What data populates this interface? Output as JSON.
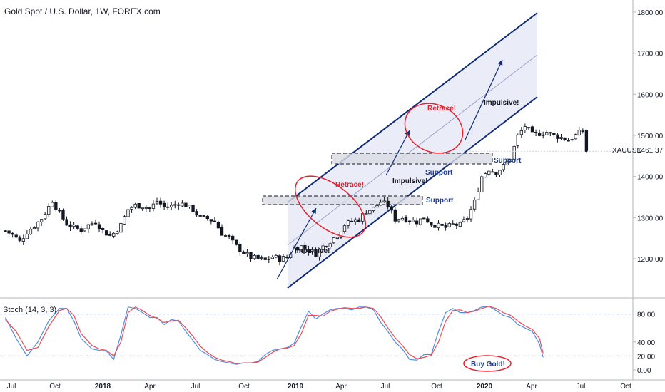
{
  "header": {
    "title": "Gold Spot / U.S. Dollar, 1W, FOREX.com"
  },
  "symbol": {
    "name": "XAUUSD",
    "price_label": "1461.37"
  },
  "stoch": {
    "label": "Stoch (14, 3, 3)"
  },
  "colors": {
    "up": "#ffffff",
    "down": "#131722",
    "candle_outline": "#131722",
    "channel": "#0e2a78",
    "channel_fill": "#eaedf8",
    "circle": "#e81f2b",
    "support_label": "#1f3c8f",
    "stoch_k": "#4f8fe0",
    "stoch_d": "#ee4b55",
    "level": "#8791b8"
  },
  "annotations": {
    "retrace_1": "Retrace!",
    "retrace_2": "Retrace!",
    "impulsive_1": "Impulsive!",
    "impulsive_2": "Impulsive!",
    "impulsive_3": "Impulsive!",
    "support_1": "Support",
    "support_2": "Support",
    "support_3": "Support",
    "buy": "Buy Gold!"
  },
  "chart_data": [
    {
      "type": "candlestick",
      "title": "Gold Spot / U.S. Dollar, 1W, FOREX.com",
      "ylim": [
        1110,
        1820
      ],
      "y_ticks": [
        "1200.00",
        "1300.00",
        "1400.00",
        "1500.00",
        "1600.00",
        "1700.00",
        "1800.00"
      ],
      "x_ticks": [
        "Jul",
        "Oct",
        "2018",
        "Apr",
        "Jul",
        "Oct",
        "2019",
        "Apr",
        "Jul",
        "Oct",
        "2020",
        "Apr",
        "Jul",
        "Oct"
      ],
      "last_price": 1461.37,
      "close_path": [
        [
          0,
          1268
        ],
        [
          2,
          1258
        ],
        [
          4,
          1242
        ],
        [
          6,
          1265
        ],
        [
          8,
          1280
        ],
        [
          10,
          1298
        ],
        [
          12,
          1326
        ],
        [
          13,
          1342
        ],
        [
          15,
          1310
        ],
        [
          17,
          1285
        ],
        [
          19,
          1276
        ],
        [
          21,
          1270
        ],
        [
          23,
          1282
        ],
        [
          25,
          1290
        ],
        [
          27,
          1268
        ],
        [
          29,
          1256
        ],
        [
          30,
          1262
        ],
        [
          32,
          1282
        ],
        [
          34,
          1320
        ],
        [
          36,
          1330
        ],
        [
          38,
          1328
        ],
        [
          40,
          1322
        ],
        [
          42,
          1340
        ],
        [
          44,
          1326
        ],
        [
          46,
          1328
        ],
        [
          48,
          1336
        ],
        [
          50,
          1330
        ],
        [
          52,
          1318
        ],
        [
          54,
          1300
        ],
        [
          56,
          1298
        ],
        [
          58,
          1290
        ],
        [
          60,
          1262
        ],
        [
          62,
          1250
        ],
        [
          64,
          1230
        ],
        [
          66,
          1215
        ],
        [
          68,
          1203
        ],
        [
          70,
          1200
        ],
        [
          72,
          1196
        ],
        [
          74,
          1205
        ],
        [
          76,
          1200
        ],
        [
          78,
          1203
        ],
        [
          80,
          1226
        ],
        [
          82,
          1230
        ],
        [
          84,
          1222
        ],
        [
          86,
          1212
        ],
        [
          88,
          1230
        ],
        [
          90,
          1243
        ],
        [
          92,
          1258
        ],
        [
          94,
          1283
        ],
        [
          96,
          1291
        ],
        [
          98,
          1296
        ],
        [
          100,
          1316
        ],
        [
          102,
          1322
        ],
        [
          104,
          1338
        ],
        [
          106,
          1330
        ],
        [
          108,
          1296
        ],
        [
          110,
          1300
        ],
        [
          112,
          1294
        ],
        [
          114,
          1290
        ],
        [
          116,
          1300
        ],
        [
          118,
          1285
        ],
        [
          120,
          1280
        ],
        [
          122,
          1276
        ],
        [
          124,
          1283
        ],
        [
          126,
          1282
        ],
        [
          128,
          1300
        ],
        [
          130,
          1338
        ],
        [
          132,
          1400
        ],
        [
          134,
          1418
        ],
        [
          136,
          1410
        ],
        [
          138,
          1425
        ],
        [
          140,
          1445
        ],
        [
          142,
          1498
        ],
        [
          144,
          1523
        ],
        [
          146,
          1502
        ],
        [
          148,
          1505
        ],
        [
          150,
          1508
        ],
        [
          152,
          1500
        ],
        [
          154,
          1495
        ],
        [
          156,
          1488
        ],
        [
          158,
          1500
        ],
        [
          160,
          1512
        ],
        [
          161,
          1462
        ]
      ]
    },
    {
      "type": "line",
      "title": "Stoch (14, 3, 3)",
      "ylim": [
        0,
        100
      ],
      "y_ticks": [
        "0.00",
        "20.00",
        "40.00",
        "80.00"
      ],
      "levels": [
        80,
        20
      ],
      "series": [
        {
          "values": [
            [
              0,
              75
            ],
            [
              3,
              45
            ],
            [
              6,
              20
            ],
            [
              9,
              40
            ],
            [
              12,
              70
            ],
            [
              15,
              88
            ],
            [
              17,
              88
            ],
            [
              19,
              70
            ],
            [
              21,
              45
            ],
            [
              24,
              30
            ],
            [
              26,
              28
            ],
            [
              28,
              27
            ],
            [
              30,
              15
            ],
            [
              32,
              50
            ],
            [
              34,
              90
            ],
            [
              36,
              88
            ],
            [
              38,
              82
            ],
            [
              40,
              75
            ],
            [
              42,
              75
            ],
            [
              44,
              65
            ],
            [
              46,
              72
            ],
            [
              48,
              70
            ],
            [
              50,
              55
            ],
            [
              52,
              42
            ],
            [
              54,
              28
            ],
            [
              56,
              22
            ],
            [
              58,
              15
            ],
            [
              60,
              12
            ],
            [
              62,
              10
            ],
            [
              64,
              8
            ],
            [
              66,
              10
            ],
            [
              68,
              10
            ],
            [
              70,
              12
            ],
            [
              72,
              22
            ],
            [
              74,
              28
            ],
            [
              76,
              30
            ],
            [
              78,
              32
            ],
            [
              80,
              38
            ],
            [
              82,
              62
            ],
            [
              84,
              84
            ],
            [
              86,
              73
            ],
            [
              88,
              80
            ],
            [
              90,
              86
            ],
            [
              92,
              88
            ],
            [
              94,
              88
            ],
            [
              96,
              86
            ],
            [
              98,
              90
            ],
            [
              100,
              90
            ],
            [
              102,
              86
            ],
            [
              104,
              68
            ],
            [
              106,
              55
            ],
            [
              108,
              40
            ],
            [
              110,
              30
            ],
            [
              112,
              15
            ],
            [
              114,
              14
            ],
            [
              116,
              22
            ],
            [
              118,
              22
            ],
            [
              120,
              55
            ],
            [
              122,
              82
            ],
            [
              124,
              88
            ],
            [
              126,
              82
            ],
            [
              128,
              82
            ],
            [
              130,
              85
            ],
            [
              132,
              90
            ],
            [
              134,
              91
            ],
            [
              136,
              85
            ],
            [
              138,
              78
            ],
            [
              140,
              75
            ],
            [
              142,
              65
            ],
            [
              144,
              60
            ],
            [
              146,
              55
            ],
            [
              148,
              37
            ],
            [
              149,
              18
            ]
          ]
        },
        {
          "values": [
            [
              0,
              72
            ],
            [
              3,
              55
            ],
            [
              6,
              28
            ],
            [
              9,
              32
            ],
            [
              12,
              62
            ],
            [
              15,
              85
            ],
            [
              17,
              88
            ],
            [
              19,
              78
            ],
            [
              21,
              52
            ],
            [
              24,
              35
            ],
            [
              26,
              30
            ],
            [
              28,
              28
            ],
            [
              30,
              20
            ],
            [
              32,
              40
            ],
            [
              34,
              82
            ],
            [
              36,
              90
            ],
            [
              38,
              85
            ],
            [
              40,
              78
            ],
            [
              42,
              74
            ],
            [
              44,
              68
            ],
            [
              46,
              70
            ],
            [
              48,
              71
            ],
            [
              50,
              60
            ],
            [
              52,
              48
            ],
            [
              54,
              34
            ],
            [
              56,
              25
            ],
            [
              58,
              18
            ],
            [
              60,
              14
            ],
            [
              62,
              12
            ],
            [
              64,
              9
            ],
            [
              66,
              10
            ],
            [
              68,
              10
            ],
            [
              70,
              11
            ],
            [
              72,
              18
            ],
            [
              74,
              25
            ],
            [
              76,
              30
            ],
            [
              78,
              31
            ],
            [
              80,
              35
            ],
            [
              82,
              52
            ],
            [
              84,
              78
            ],
            [
              86,
              78
            ],
            [
              88,
              77
            ],
            [
              90,
              84
            ],
            [
              92,
              87
            ],
            [
              94,
              89
            ],
            [
              96,
              88
            ],
            [
              98,
              88
            ],
            [
              100,
              90
            ],
            [
              102,
              88
            ],
            [
              104,
              76
            ],
            [
              106,
              60
            ],
            [
              108,
              46
            ],
            [
              110,
              35
            ],
            [
              112,
              22
            ],
            [
              114,
              16
            ],
            [
              116,
              18
            ],
            [
              118,
              21
            ],
            [
              120,
              40
            ],
            [
              122,
              70
            ],
            [
              124,
              85
            ],
            [
              126,
              86
            ],
            [
              128,
              82
            ],
            [
              130,
              84
            ],
            [
              132,
              88
            ],
            [
              134,
              91
            ],
            [
              136,
              88
            ],
            [
              138,
              82
            ],
            [
              140,
              78
            ],
            [
              142,
              70
            ],
            [
              144,
              63
            ],
            [
              146,
              58
            ],
            [
              148,
              45
            ],
            [
              149,
              24
            ]
          ]
        }
      ]
    }
  ]
}
